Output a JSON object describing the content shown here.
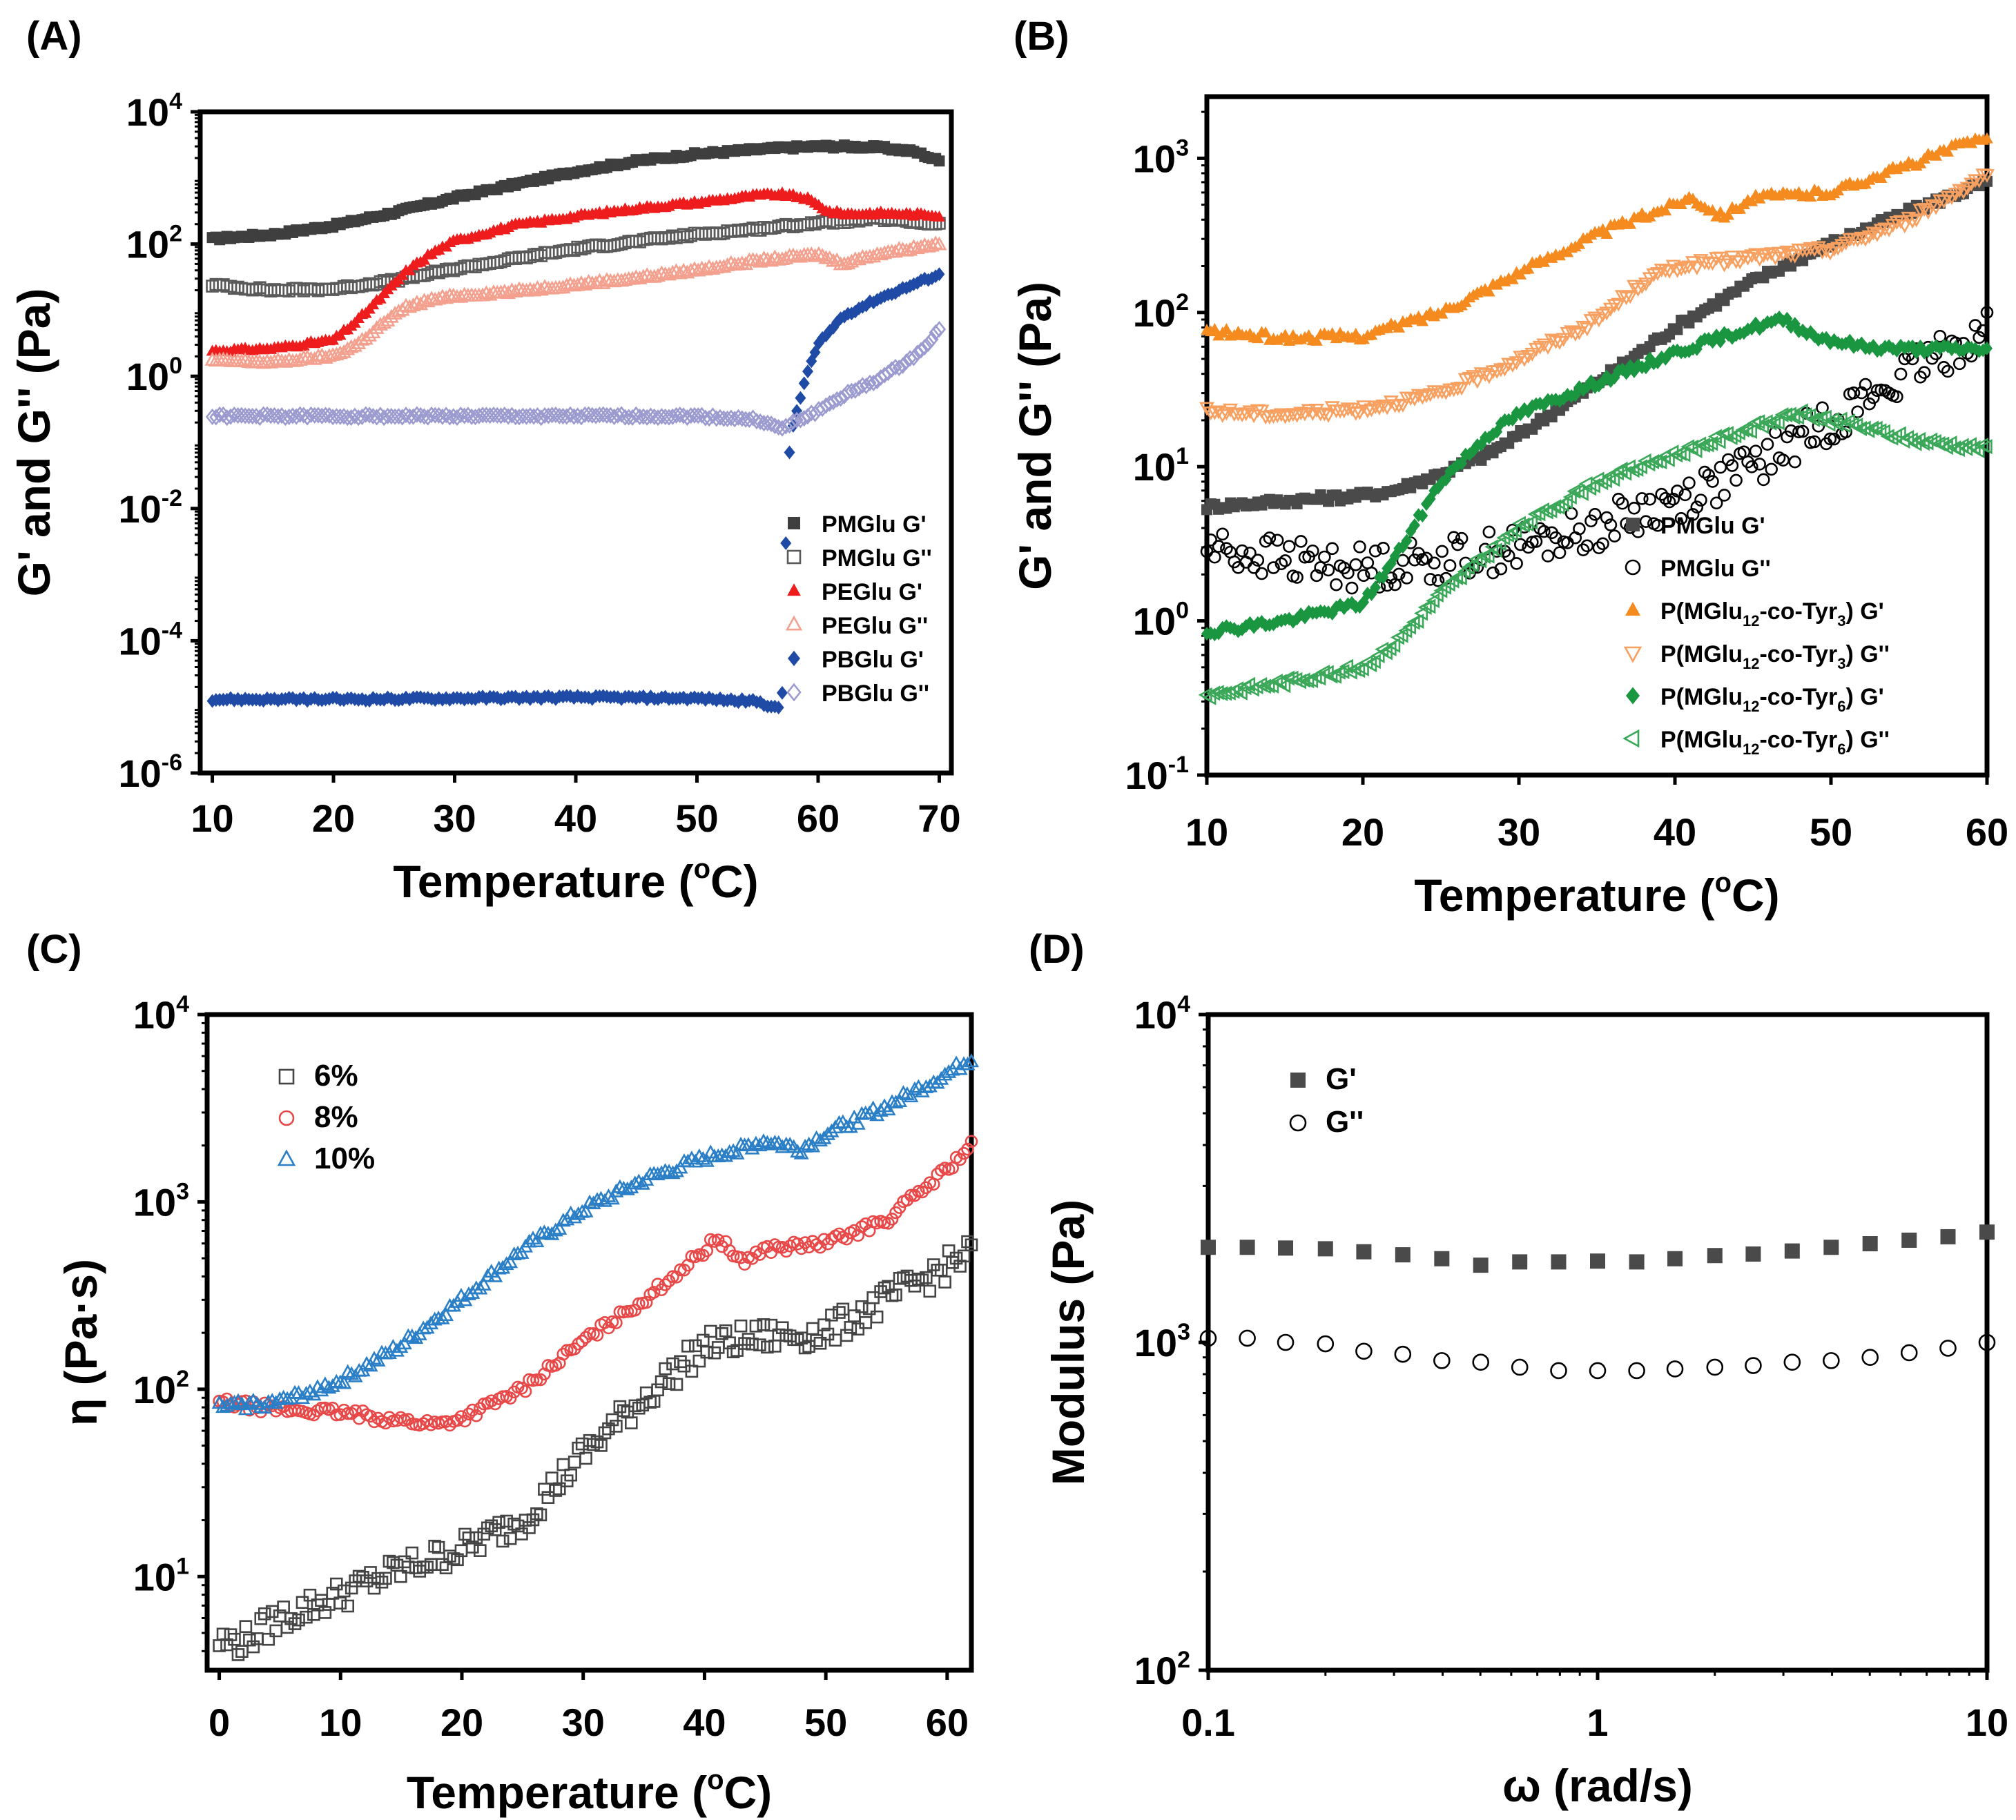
{
  "chart_data": [
    {
      "id": "A",
      "panel_label": "(A)",
      "type": "scatter",
      "xlabel": "Temperature (",
      "xlabel_sup": "o",
      "xlabel_end": "C)",
      "ylabel": "G' and G'' (Pa)",
      "xscale": "linear",
      "yscale": "log",
      "xlim": [
        9,
        71
      ],
      "ylim": [
        -6,
        4
      ],
      "xticks": [
        10,
        20,
        30,
        40,
        50,
        60,
        70
      ],
      "yticks": [
        -6,
        -4,
        -2,
        0,
        2,
        4
      ],
      "legend_position": "bottom-right",
      "series": [
        {
          "name": "PMGlu G'",
          "color": "#3f3f3f",
          "marker": "square",
          "filled": true,
          "x": [
            10,
            15,
            20,
            25,
            30,
            35,
            40,
            45,
            50,
            55,
            58,
            60,
            62,
            65,
            68,
            70
          ],
          "y": [
            120,
            140,
            190,
            300,
            500,
            800,
            1250,
            1800,
            2300,
            2700,
            2900,
            3000,
            3000,
            2900,
            2500,
            1800
          ]
        },
        {
          "name": "PMGlu G''",
          "color": "#5a5a5a",
          "marker": "square",
          "filled": false,
          "x": [
            10,
            15,
            20,
            25,
            30,
            35,
            40,
            45,
            50,
            55,
            60,
            65,
            70
          ],
          "y": [
            24,
            20,
            21,
            28,
            42,
            60,
            85,
            110,
            140,
            170,
            210,
            240,
            200
          ]
        },
        {
          "name": "PEGlu G'",
          "color": "#ee1c1c",
          "marker": "triangle-up",
          "filled": true,
          "x": [
            10,
            15,
            20,
            22,
            24,
            26,
            28,
            30,
            35,
            40,
            45,
            50,
            55,
            57,
            59,
            61,
            63,
            65,
            70
          ],
          "y": [
            2.4,
            2.6,
            3.5,
            7,
            16,
            38,
            70,
            110,
            190,
            260,
            340,
            420,
            540,
            560,
            490,
            300,
            280,
            290,
            270
          ]
        },
        {
          "name": "PEGlu G''",
          "color": "#f4a08e",
          "marker": "triangle-up",
          "filled": false,
          "x": [
            10,
            15,
            20,
            22,
            24,
            26,
            28,
            30,
            35,
            40,
            45,
            50,
            55,
            60,
            62,
            65,
            70
          ],
          "y": [
            1.7,
            1.6,
            2.0,
            3.0,
            6,
            11,
            14,
            16,
            19,
            24,
            30,
            40,
            55,
            68,
            50,
            70,
            100
          ]
        },
        {
          "name": "PBGlu G'",
          "color": "#1f4ba6",
          "marker": "diamond",
          "filled": true,
          "x": [
            10,
            14,
            20,
            30,
            40,
            50,
            55,
            57,
            57.5,
            58,
            59,
            60,
            62,
            65,
            68,
            70
          ],
          "y": [
            1.3e-05,
            1.3e-05,
            1.3e-05,
            1.35e-05,
            1.4e-05,
            1.35e-05,
            1.2e-05,
            9e-06,
            0.05,
            0.2,
            1,
            3,
            8,
            15,
            25,
            35
          ]
        },
        {
          "name": "PBGlu G''",
          "color": "#9b9bd0",
          "marker": "diamond",
          "filled": false,
          "x": [
            10,
            15,
            20,
            25,
            30,
            35,
            40,
            45,
            50,
            55,
            57,
            58,
            60,
            62,
            65,
            68,
            70
          ],
          "y": [
            0.25,
            0.25,
            0.25,
            0.25,
            0.25,
            0.25,
            0.25,
            0.25,
            0.25,
            0.22,
            0.16,
            0.2,
            0.3,
            0.5,
            0.9,
            2,
            5
          ]
        }
      ]
    },
    {
      "id": "B",
      "panel_label": "(B)",
      "type": "scatter",
      "xlabel": "Temperature (",
      "xlabel_sup": "o",
      "xlabel_end": "C)",
      "ylabel": "G' and G'' (Pa)",
      "xscale": "linear",
      "yscale": "log",
      "xlim": [
        10,
        60
      ],
      "ylim": [
        -1,
        3.4
      ],
      "xticks": [
        10,
        20,
        30,
        40,
        50,
        60
      ],
      "yticks": [
        -1,
        0,
        1,
        2,
        3
      ],
      "legend_position": "bottom-right",
      "series": [
        {
          "name": "PMGlu G'",
          "color": "#4a4a4a",
          "marker": "square",
          "filled": true,
          "x": [
            10,
            15,
            20,
            22,
            25,
            28,
            30,
            35,
            40,
            45,
            50,
            55,
            60
          ],
          "y": [
            5.5,
            6,
            6.5,
            7,
            9,
            12,
            16,
            35,
            80,
            160,
            280,
            450,
            700
          ]
        },
        {
          "name": "PMGlu G''",
          "color": "#000000",
          "marker": "circle",
          "filled": false,
          "x": [
            10,
            15,
            20,
            25,
            30,
            35,
            40,
            45,
            50,
            55,
            60
          ],
          "y": [
            3,
            2.5,
            2.2,
            2.5,
            3,
            4,
            6,
            10,
            20,
            40,
            80
          ]
        },
        {
          "name": "P(MGlu12-co-Tyr3) G'",
          "label_base": "P(MGlu",
          "label_s1": "12",
          "label_mid": "-co-Tyr",
          "label_s2": "3",
          "label_end": ")  G'",
          "color": "#f58a1f",
          "marker": "triangle-up",
          "filled": true,
          "x": [
            10,
            15,
            20,
            25,
            30,
            35,
            40,
            41,
            43,
            45,
            50,
            55,
            60
          ],
          "y": [
            75,
            68,
            70,
            100,
            180,
            320,
            500,
            560,
            420,
            550,
            600,
            900,
            1400
          ]
        },
        {
          "name": "P(MGlu12-co-Tyr3) G''",
          "label_base": "P(MGlu",
          "label_s1": "12",
          "label_mid": "-co-Tyr",
          "label_s2": "3",
          "label_end": ")  G''",
          "color": "#f7a060",
          "marker": "triangle-down",
          "filled": false,
          "x": [
            10,
            15,
            20,
            25,
            30,
            35,
            38,
            40,
            45,
            50,
            55,
            60
          ],
          "y": [
            23,
            22,
            24,
            30,
            50,
            90,
            160,
            200,
            230,
            260,
            400,
            800
          ]
        },
        {
          "name": "P(MGlu12-co-Tyr6) G'",
          "label_base": "P(MGlu",
          "label_s1": "12",
          "label_mid": "-co-Tyr",
          "label_s2": "6",
          "label_end": ")  G'",
          "color": "#1a9641",
          "marker": "diamond",
          "filled": true,
          "x": [
            10,
            15,
            20,
            22,
            25,
            28,
            30,
            35,
            40,
            45,
            47,
            49,
            52,
            55,
            60
          ],
          "y": [
            0.85,
            1.0,
            1.3,
            2.5,
            8,
            16,
            22,
            35,
            55,
            80,
            90,
            70,
            60,
            58,
            58
          ]
        },
        {
          "name": "P(MGlu12-co-Tyr6) G''",
          "label_base": "P(MGlu",
          "label_s1": "12",
          "label_mid": "-co-Tyr",
          "label_s2": "6",
          "label_end": ")  G''",
          "color": "#3aa858",
          "marker": "triangle-left",
          "filled": false,
          "x": [
            10,
            15,
            20,
            22,
            25,
            30,
            35,
            40,
            45,
            48,
            52,
            55,
            60
          ],
          "y": [
            0.33,
            0.4,
            0.5,
            0.7,
            1.5,
            4,
            8,
            12,
            18,
            22,
            18,
            15,
            13
          ]
        }
      ]
    },
    {
      "id": "C",
      "panel_label": "(C)",
      "type": "scatter",
      "xlabel": "Temperature (",
      "xlabel_sup": "o",
      "xlabel_end": "C)",
      "ylabel": "η (Pa·s)",
      "xscale": "linear",
      "yscale": "log",
      "xlim": [
        -1,
        62
      ],
      "ylim": [
        0.5,
        4
      ],
      "xticks": [
        0,
        10,
        20,
        30,
        40,
        50,
        60
      ],
      "yticks": [
        1,
        2,
        3,
        4
      ],
      "legend_position": "top-left",
      "series": [
        {
          "name": "6%",
          "color": "#444444",
          "marker": "square",
          "filled": false,
          "x": [
            0,
            2,
            5,
            10,
            15,
            20,
            25,
            30,
            35,
            40,
            45,
            50,
            55,
            60,
            62
          ],
          "y": [
            4.5,
            4.5,
            6,
            8,
            11,
            14,
            20,
            45,
            90,
            170,
            190,
            200,
            300,
            450,
            550
          ]
        },
        {
          "name": "8%",
          "color": "#e84848",
          "marker": "circle",
          "filled": false,
          "x": [
            0,
            5,
            10,
            15,
            18,
            20,
            25,
            30,
            35,
            40,
            41,
            43,
            45,
            50,
            55,
            60,
            62
          ],
          "y": [
            85,
            78,
            75,
            68,
            65,
            70,
            100,
            180,
            300,
            550,
            650,
            480,
            560,
            600,
            800,
            1500,
            2000
          ]
        },
        {
          "name": "10%",
          "color": "#2a7fc7",
          "marker": "triangle-up",
          "filled": false,
          "x": [
            0,
            5,
            10,
            15,
            20,
            25,
            30,
            35,
            40,
            45,
            48,
            50,
            55,
            60,
            62
          ],
          "y": [
            80,
            85,
            110,
            170,
            300,
            550,
            900,
            1300,
            1700,
            2100,
            1900,
            2300,
            3200,
            4800,
            5800
          ]
        }
      ]
    },
    {
      "id": "D",
      "panel_label": "(D)",
      "type": "scatter",
      "xlabel": "ω (rad/s)",
      "ylabel": "Modulus (Pa)",
      "xscale": "log",
      "yscale": "log",
      "xlim": [
        -1,
        1
      ],
      "ylim": [
        2,
        4
      ],
      "xtick_labels": [
        "0.1",
        "1",
        "10"
      ],
      "ytick_exponents": [
        2,
        3,
        4
      ],
      "legend_position": "top-left",
      "series": [
        {
          "name": "G'",
          "color": "#4a4a4a",
          "marker": "square",
          "filled": true,
          "x": [
            0.1,
            0.126,
            0.158,
            0.2,
            0.251,
            0.316,
            0.398,
            0.501,
            0.631,
            0.794,
            1.0,
            1.26,
            1.58,
            2.0,
            2.51,
            3.16,
            3.98,
            5.01,
            6.31,
            7.94,
            10.0
          ],
          "y": [
            1950,
            1950,
            1940,
            1930,
            1890,
            1850,
            1800,
            1720,
            1760,
            1760,
            1770,
            1760,
            1800,
            1840,
            1860,
            1900,
            1950,
            2000,
            2050,
            2100,
            2170
          ]
        },
        {
          "name": "G''",
          "color": "#000000",
          "marker": "circle",
          "filled": false,
          "x": [
            0.1,
            0.126,
            0.158,
            0.2,
            0.251,
            0.316,
            0.398,
            0.501,
            0.631,
            0.794,
            1.0,
            1.26,
            1.58,
            2.0,
            2.51,
            3.16,
            3.98,
            5.01,
            6.31,
            7.94,
            10.0
          ],
          "y": [
            1030,
            1030,
            1000,
            990,
            940,
            920,
            880,
            870,
            840,
            820,
            820,
            820,
            830,
            840,
            850,
            870,
            880,
            900,
            930,
            960,
            1000
          ]
        }
      ]
    }
  ]
}
